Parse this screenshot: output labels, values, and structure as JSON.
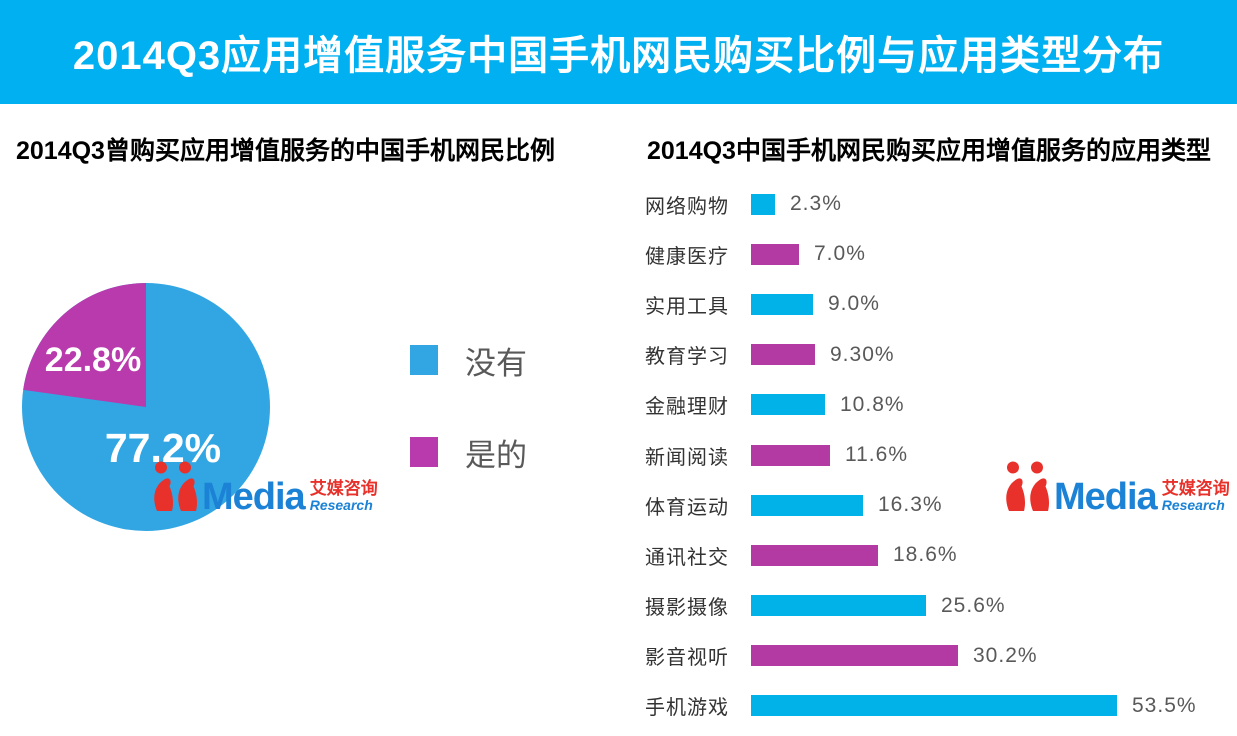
{
  "header": {
    "title": "2014Q3应用增值服务中国手机网民购买比例与应用类型分布"
  },
  "sections": {
    "pie": {
      "subtitle": "2014Q3曾购买应用增值服务的中国手机网民比例"
    },
    "bar": {
      "subtitle": "2014Q3中国手机网民购买应用增值服务的应用类型"
    }
  },
  "logo": {
    "media": "Media",
    "chinese": "艾媒咨询",
    "research": "Research"
  },
  "colors": {
    "header_bg": "#00B0F0",
    "pie_blue": "#31A6E3",
    "pie_magenta": "#B83AAC",
    "bar_blue": "#00B2E8",
    "bar_magenta": "#B23AA2",
    "logo_red": "#E8312A",
    "logo_blue": "#1B82D6",
    "legend_text": "#595959"
  },
  "chart_data": [
    {
      "type": "pie",
      "title": "2014Q3曾购买应用增值服务的中国手机网民比例",
      "labels": [
        "没有",
        "是的"
      ],
      "values": [
        77.2,
        22.8
      ],
      "value_labels": [
        "77.2%",
        "22.8%"
      ],
      "colors": [
        "#31A6E3",
        "#B83AAC"
      ],
      "legend_position": "right",
      "start_angle_deg": 90,
      "direction": "counterclockwise"
    },
    {
      "type": "bar",
      "orientation": "horizontal",
      "title": "2014Q3中国手机网民购买应用增值服务的应用类型",
      "categories": [
        "网络购物",
        "健康医疗",
        "实用工具",
        "教育学习",
        "金融理财",
        "新闻阅读",
        "体育运动",
        "通讯社交",
        "摄影摄像",
        "影音视听",
        "手机游戏"
      ],
      "values": [
        2.3,
        7.0,
        9.0,
        9.3,
        10.8,
        11.6,
        16.3,
        18.6,
        25.6,
        30.2,
        53.5
      ],
      "value_labels": [
        "2.3%",
        "7.0%",
        "9.0%",
        "9.30%",
        "10.8%",
        "11.6%",
        "16.3%",
        "18.6%",
        "25.6%",
        "30.2%",
        "53.5%"
      ],
      "colors_alternating": [
        "#00B2E8",
        "#B23AA2"
      ],
      "xlim": [
        0,
        55
      ],
      "grid": false,
      "value_label_position": "right-of-bar"
    }
  ]
}
